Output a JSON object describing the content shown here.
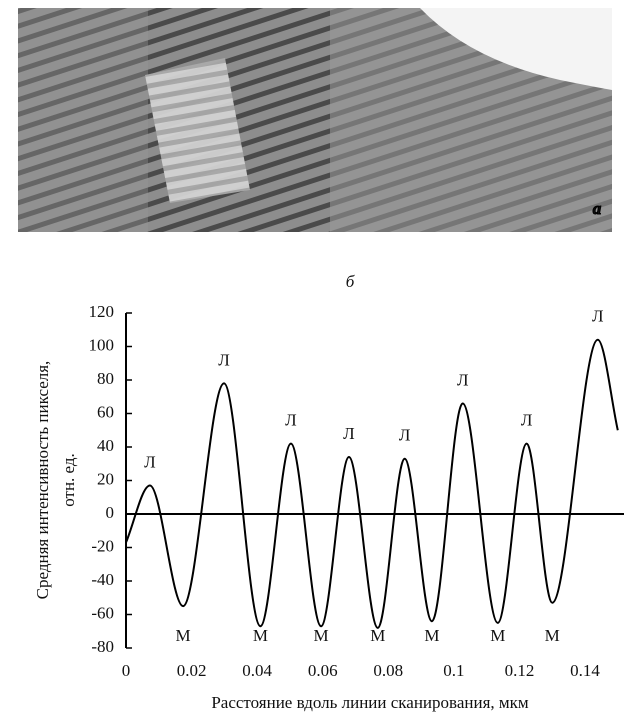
{
  "figure": {
    "panel_a": "a",
    "panel_b": "б"
  },
  "chart_data": {
    "type": "line",
    "x_label": "Расстояние вдоль линии сканирования, мкм",
    "y_label": [
      "Средняя интенсивность пикселя,",
      "отн. ед."
    ],
    "x": [
      0,
      0.0073,
      0.0174,
      0.0299,
      0.041,
      0.0503,
      0.0595,
      0.068,
      0.0768,
      0.085,
      0.0933,
      0.1027,
      0.1134,
      0.1222,
      0.13,
      0.1439,
      0.15
    ],
    "values": [
      -17,
      17,
      -55,
      78,
      -67,
      42,
      -67,
      34,
      -68,
      33,
      -64,
      66,
      -65,
      42,
      -53,
      104,
      50
    ],
    "point_labels": [
      null,
      "Л",
      "М",
      "Л",
      "М",
      "Л",
      "М",
      "Л",
      "М",
      "Л",
      "М",
      "Л",
      "М",
      "Л",
      "М",
      "Л",
      null
    ],
    "color": "#000000",
    "xlim": [
      0,
      0.15
    ],
    "ylim": [
      -80,
      120
    ],
    "xticks": [
      0,
      0.02,
      0.04,
      0.06,
      0.08,
      0.1,
      0.12,
      0.14
    ],
    "yticks": [
      -80,
      -60,
      -40,
      -20,
      0,
      20,
      40,
      60,
      80,
      100,
      120
    ]
  }
}
